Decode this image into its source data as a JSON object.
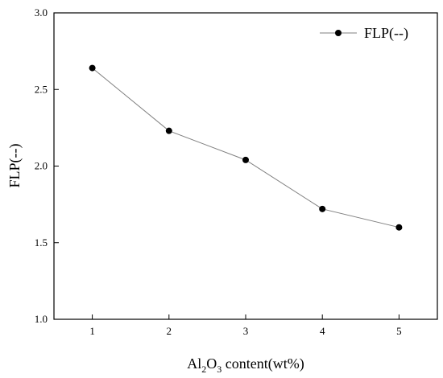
{
  "chart_data": {
    "type": "line",
    "xlabel": {
      "main": "Al",
      "sub1": "2",
      "mid": "O",
      "sub2": "3",
      "tail": " content(wt%)"
    },
    "ylabel": "FLP(--)",
    "xlim": [
      0.5,
      5.5
    ],
    "ylim": [
      1.0,
      3.0
    ],
    "xticks": [
      "1",
      "2",
      "3",
      "4",
      "5"
    ],
    "yticks": [
      "1.0",
      "1.5",
      "2.0",
      "2.5",
      "3.0"
    ],
    "legend_position": "top-right",
    "grid": false,
    "series": [
      {
        "name": "FLP(--)",
        "x": [
          1,
          2,
          3,
          4,
          5
        ],
        "y": [
          2.64,
          2.23,
          2.04,
          1.72,
          1.6
        ],
        "line_color": "#7f7f7f",
        "marker_color": "#000000"
      }
    ]
  }
}
